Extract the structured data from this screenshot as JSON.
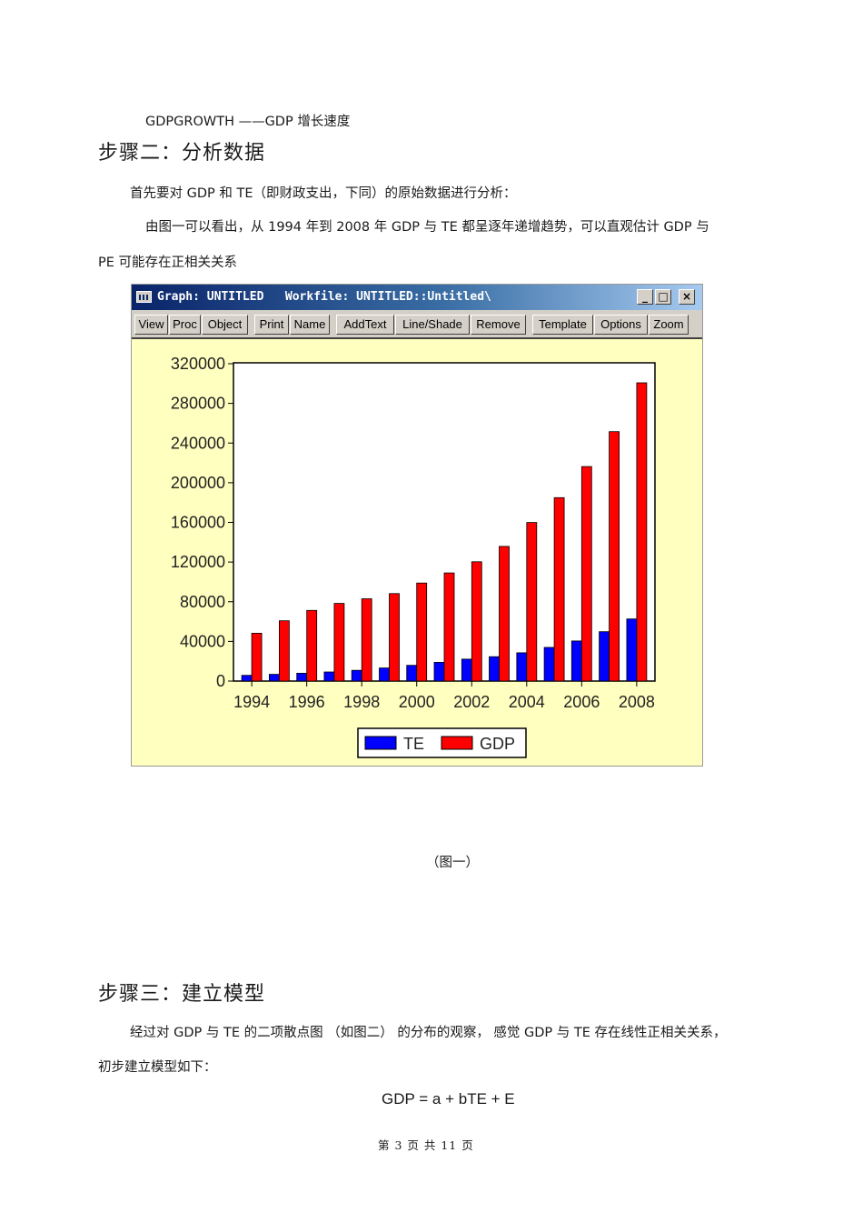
{
  "doc": {
    "line1": "GDPGROWTH ——GDP 增长速度",
    "heading2": "步骤二：分析数据",
    "para1": "首先要对  GDP 和 TE（即财政支出，下同）的原始数据进行分析：",
    "para2a": "由图一可以看出，从   1994  年到  2008 年  GDP 与  TE 都呈逐年递增趋势，可以直观估计      GDP 与",
    "para2b": "PE 可能存在正相关关系",
    "caption": "（图一）",
    "heading3": "步骤三：建立模型",
    "para3a": "经过对  GDP 与 TE 的二项散点图 （如图二） 的分布的观察，  感觉  GDP 与  TE  存在线性正相关关系，",
    "para3b": "初步建立模型如下：",
    "formula": "GDP = a + bTE + E",
    "footer": "第  3  页  共  11  页"
  },
  "window": {
    "title": "Graph: UNTITLED   Workfile: UNTITLED::Untitled\\",
    "minimize": "_",
    "maximize": "□",
    "close": "×",
    "toolbar": [
      "View",
      "Proc",
      "Object",
      "Print",
      "Name",
      "AddText",
      "Line/Shade",
      "Remove",
      "Template",
      "Options",
      "Zoom"
    ]
  },
  "colors": {
    "TE": "#0000ff",
    "GDP": "#ff0000",
    "plot_bg": "#ffffff",
    "window_bg": "#ffffc0"
  },
  "chart_data": {
    "type": "bar",
    "categories": [
      "1994",
      "1995",
      "1996",
      "1997",
      "1998",
      "1999",
      "2000",
      "2001",
      "2002",
      "2003",
      "2004",
      "2005",
      "2006",
      "2007",
      "2008"
    ],
    "x_tick_labels": [
      "1994",
      "1996",
      "1998",
      "2000",
      "2002",
      "2004",
      "2006",
      "2008"
    ],
    "y_tick_labels": [
      "0",
      "40000",
      "80000",
      "120000",
      "160000",
      "200000",
      "240000",
      "280000",
      "320000"
    ],
    "ylim": [
      0,
      320000
    ],
    "series": [
      {
        "name": "TE",
        "values": [
          5800,
          6800,
          7900,
          9200,
          10800,
          13200,
          15900,
          18900,
          22100,
          24600,
          28500,
          33900,
          40400,
          49800,
          62600
        ]
      },
      {
        "name": "GDP",
        "values": [
          48200,
          60800,
          71200,
          78300,
          83000,
          88200,
          98800,
          109000,
          120300,
          135800,
          159900,
          184900,
          216300,
          251500,
          300700
        ]
      }
    ],
    "legend": "bottom-center",
    "grid": false
  }
}
